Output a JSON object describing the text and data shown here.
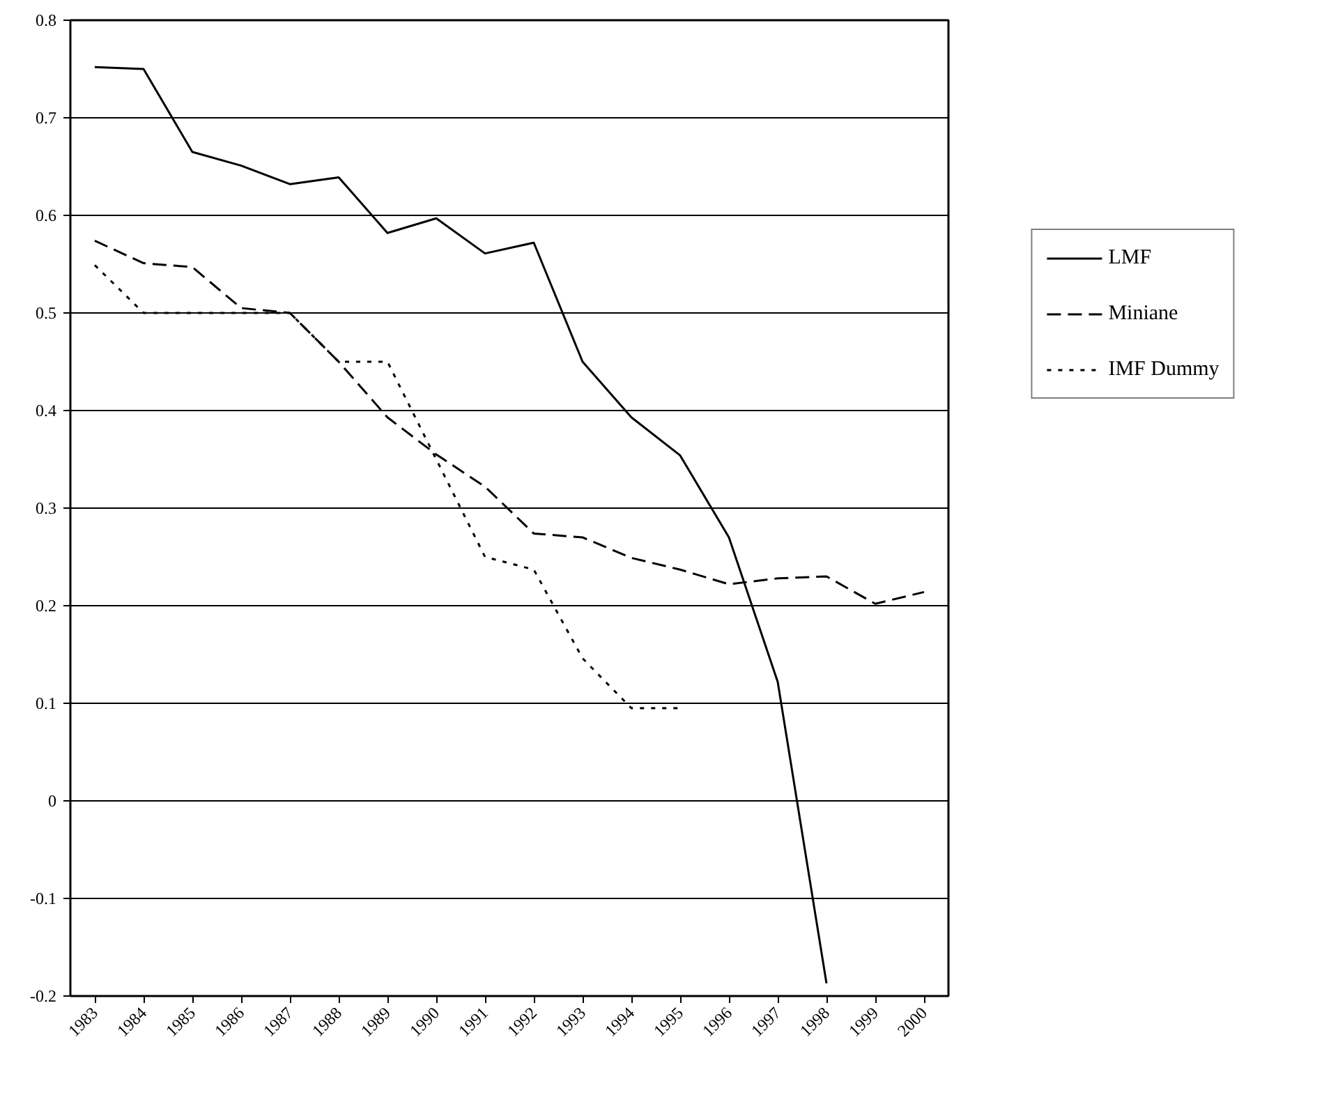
{
  "chart_data": {
    "type": "line",
    "categories": [
      "1983",
      "1984",
      "1985",
      "1986",
      "1987",
      "1988",
      "1989",
      "1990",
      "1991",
      "1992",
      "1993",
      "1994",
      "1995",
      "1996",
      "1997",
      "1998",
      "1999",
      "2000"
    ],
    "series": [
      {
        "name": "LMF",
        "color": "#000000",
        "line_style": "solid",
        "values": [
          0.752,
          0.75,
          0.665,
          0.651,
          0.632,
          0.639,
          0.582,
          0.597,
          0.561,
          0.572,
          0.45,
          0.393,
          0.354,
          0.27,
          0.122,
          -0.187,
          null,
          null
        ]
      },
      {
        "name": "Miniane",
        "color": "#000000",
        "line_style": "dashed",
        "values": [
          0.574,
          0.551,
          0.547,
          0.505,
          0.5,
          0.45,
          0.393,
          0.355,
          0.322,
          0.274,
          0.27,
          0.249,
          0.237,
          0.222,
          0.228,
          0.23,
          0.202,
          0.214
        ]
      },
      {
        "name": "IMF Dummy",
        "color": "#000000",
        "line_style": "dotted",
        "values": [
          0.549,
          0.5,
          0.5,
          0.5,
          0.5,
          0.45,
          0.45,
          0.35,
          0.25,
          0.237,
          0.146,
          0.095,
          0.095,
          null,
          null,
          null,
          null,
          null
        ]
      }
    ],
    "ylim": [
      -0.2,
      0.8
    ],
    "yticks": [
      -0.2,
      -0.1,
      0,
      0.1,
      0.2,
      0.3,
      0.4,
      0.5,
      0.6,
      0.7,
      0.8
    ],
    "grid": "y",
    "legend": "right",
    "marker": "none"
  }
}
